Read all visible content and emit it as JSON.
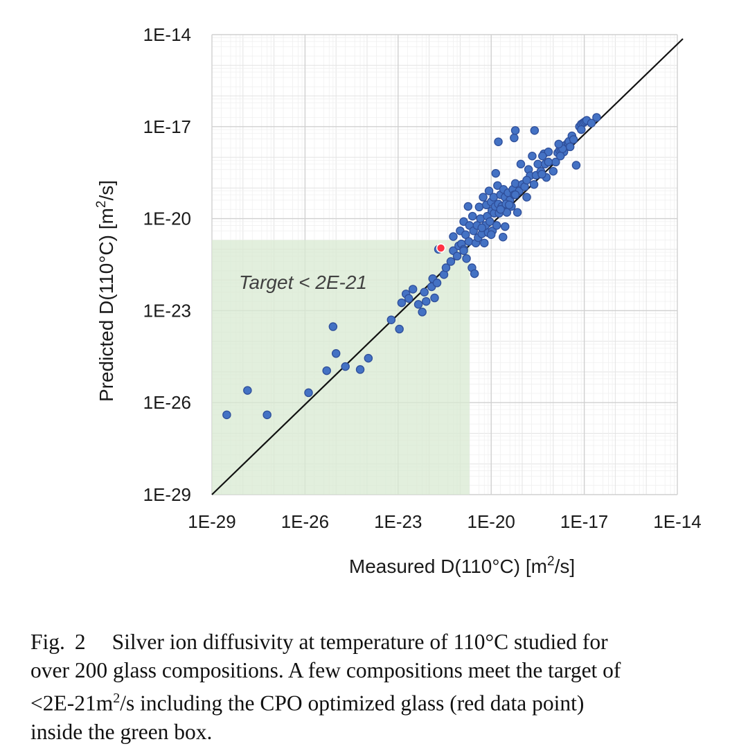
{
  "chart_data": {
    "type": "scatter",
    "x_scale": "log",
    "y_scale": "log",
    "x_tick_labels": [
      "1E-29",
      "1E-26",
      "1E-23",
      "1E-20",
      "1E-17",
      "1E-14"
    ],
    "y_tick_labels": [
      "1E-29",
      "1E-26",
      "1E-23",
      "1E-20",
      "1E-17",
      "1E-14"
    ],
    "xlim": [
      "1E-29",
      "1E-14"
    ],
    "ylim": [
      "1E-29",
      "1E-14"
    ],
    "grid": true,
    "xlabel": {
      "main": "Measured D(110°C) [m",
      "sup": "2",
      "tail": "/s]"
    },
    "ylabel": {
      "main": "Predicted D(110°C) [m",
      "sup": "2",
      "tail": "/s]"
    },
    "annotation": "Target < 2E-21",
    "target_region": {
      "x_max": 2e-21,
      "y_max": 2e-21,
      "color": "#d8ead2"
    },
    "identity_line": true,
    "colors": {
      "series": "#4472c4",
      "series_edge": "#2f4f9a",
      "highlight": "#ff3344",
      "grid": "#e3e3e3"
    },
    "highlight_point": [
      2.4e-22,
      1.1e-21
    ],
    "points": [
      [
        3e-29,
        4e-27
      ],
      [
        1.4e-28,
        2.5e-26
      ],
      [
        6e-28,
        4e-27
      ],
      [
        1.3e-26,
        2.1e-26
      ],
      [
        8e-26,
        3e-24
      ],
      [
        5e-26,
        1.1e-25
      ],
      [
        1e-25,
        4e-25
      ],
      [
        2e-25,
        1.5e-25
      ],
      [
        6e-25,
        1.2e-25
      ],
      [
        1.1e-24,
        2.8e-25
      ],
      [
        6e-24,
        5e-24
      ],
      [
        1.1e-23,
        2.5e-24
      ],
      [
        1.3e-23,
        1.8e-23
      ],
      [
        1.8e-23,
        3.5e-23
      ],
      [
        2.2e-23,
        2.5e-23
      ],
      [
        3e-23,
        5e-23
      ],
      [
        4.5e-23,
        1.6e-23
      ],
      [
        6e-23,
        9e-24
      ],
      [
        7e-23,
        4e-23
      ],
      [
        8e-23,
        2e-23
      ],
      [
        1.2e-22,
        6e-23
      ],
      [
        1.3e-22,
        1.1e-22
      ],
      [
        1.5e-22,
        2.6e-23
      ],
      [
        1.8e-22,
        8e-23
      ],
      [
        2e-22,
        1e-21
      ],
      [
        3e-22,
        1.5e-22
      ],
      [
        3.5e-22,
        2.5e-22
      ],
      [
        5e-22,
        4e-22
      ],
      [
        6e-22,
        9e-22
      ],
      [
        6e-22,
        2.6e-21
      ],
      [
        8e-22,
        6e-22
      ],
      [
        9e-22,
        1.3e-21
      ],
      [
        1e-21,
        4e-21
      ],
      [
        1.1e-21,
        1.5e-21
      ],
      [
        1.3e-21,
        1e-21
      ],
      [
        1.3e-21,
        8e-21
      ],
      [
        1.5e-21,
        3e-21
      ],
      [
        1.6e-21,
        5e-22
      ],
      [
        1.8e-21,
        2.5e-20
      ],
      [
        1.9e-21,
        1.8e-21
      ],
      [
        2e-21,
        6e-21
      ],
      [
        2.4e-21,
        2.5e-22
      ],
      [
        2.5e-21,
        1.2e-20
      ],
      [
        2.7e-21,
        4e-21
      ],
      [
        2.9e-21,
        1.6e-22
      ],
      [
        3.2e-21,
        1.6e-21
      ],
      [
        3.5e-21,
        6e-21
      ],
      [
        3.8e-21,
        2.4e-21
      ],
      [
        4.1e-21,
        2.4e-20
      ],
      [
        4.5e-21,
        1e-20
      ],
      [
        5e-21,
        3.2e-21
      ],
      [
        5.5e-21,
        5e-20
      ],
      [
        6e-21,
        1.6e-21
      ],
      [
        6.5e-21,
        6e-21
      ],
      [
        7e-21,
        2.8e-20
      ],
      [
        7.5e-21,
        1.2e-20
      ],
      [
        8e-21,
        3.5e-21
      ],
      [
        8.5e-21,
        8e-20
      ],
      [
        9e-21,
        8e-21
      ],
      [
        1e-20,
        3.5e-20
      ],
      [
        1.05e-20,
        1.8e-20
      ],
      [
        1.1e-20,
        4e-21
      ],
      [
        1.2e-20,
        5e-20
      ],
      [
        1.25e-20,
        1.5e-20
      ],
      [
        1.35e-20,
        2.5e-20
      ],
      [
        1.4e-20,
        3e-19
      ],
      [
        1.5e-20,
        6e-21
      ],
      [
        1.6e-20,
        1.2e-19
      ],
      [
        1.7e-20,
        3e-20
      ],
      [
        1.8e-20,
        1.5e-20
      ],
      [
        2e-20,
        6e-20
      ],
      [
        2.2e-20,
        2.5e-20
      ],
      [
        2.4e-20,
        2.5e-21
      ],
      [
        2.5e-20,
        9e-20
      ],
      [
        2.8e-20,
        5e-20
      ],
      [
        3.2e-20,
        1.6e-20
      ],
      [
        3.5e-20,
        7e-20
      ],
      [
        4e-20,
        4e-20
      ],
      [
        4.5e-20,
        2.5e-20
      ],
      [
        5e-20,
        9e-20
      ],
      [
        5.5e-20,
        6e-20
      ],
      [
        6e-20,
        1.4e-19
      ],
      [
        7e-20,
        1.6e-20
      ],
      [
        8e-20,
        8e-20
      ],
      [
        9e-20,
        6e-19
      ],
      [
        1e-19,
        1.3e-19
      ],
      [
        1.2e-19,
        1.1e-19
      ],
      [
        1.4e-19,
        5e-20
      ],
      [
        1.6e-19,
        4e-19
      ],
      [
        1.8e-19,
        2.5e-19
      ],
      [
        2.1e-19,
        1.1e-18
      ],
      [
        2.4e-19,
        1.3e-19
      ],
      [
        2.8e-19,
        2.6e-19
      ],
      [
        3.2e-19,
        6e-19
      ],
      [
        4e-19,
        3.5e-19
      ],
      [
        5e-19,
        1.3e-18
      ],
      [
        5.5e-19,
        6e-19
      ],
      [
        6e-19,
        2.2e-19
      ],
      [
        7e-19,
        1.5e-18
      ],
      [
        1e-18,
        3.5e-19
      ],
      [
        1.2e-18,
        7e-19
      ],
      [
        1.4e-18,
        1.4e-18
      ],
      [
        1.6e-18,
        1.7e-18
      ],
      [
        1.8e-18,
        1.8e-18
      ],
      [
        2.2e-18,
        1.5e-18
      ],
      [
        2.5e-18,
        2.5e-18
      ],
      [
        3e-18,
        3e-18
      ],
      [
        3.2e-18,
        3.3e-18
      ],
      [
        3.5e-18,
        2.2e-18
      ],
      [
        4e-18,
        5e-18
      ],
      [
        4.5e-18,
        3.8e-18
      ],
      [
        5.5e-18,
        5.5e-19
      ],
      [
        7e-18,
        1e-17
      ],
      [
        8e-18,
        1.2e-17
      ],
      [
        9e-18,
        1.3e-17
      ],
      [
        1e-17,
        1.4e-17
      ],
      [
        1.1e-17,
        1.5e-17
      ],
      [
        1.2e-17,
        1.6e-17
      ],
      [
        2e-18,
        1.9e-18
      ],
      [
        1.5e-18,
        2.7e-18
      ],
      [
        2.5e-19,
        7.5e-18
      ],
      [
        4.5e-19,
        1.1e-18
      ],
      [
        5.5e-20,
        4.3e-18
      ],
      [
        6e-20,
        7.5e-18
      ],
      [
        1.7e-18,
        1.1e-18
      ],
      [
        4.3e-19,
        2.8e-19
      ],
      [
        1.7e-20,
        3.2e-18
      ],
      [
        1.3e-21,
        9e-22
      ],
      [
        1e-20,
        3e-21
      ],
      [
        2e-20,
        2e-20
      ],
      [
        3e-20,
        3e-20
      ],
      [
        5e-21,
        5e-21
      ],
      [
        6e-20,
        6e-20
      ],
      [
        7e-19,
        7e-19
      ],
      [
        8e-18,
        8e-18
      ],
      [
        2.5e-17,
        2e-17
      ],
      [
        1.7e-17,
        1.3e-17
      ],
      [
        3.8e-20,
        2.8e-20
      ],
      [
        2.8e-20,
        5.5e-21
      ],
      [
        1.4e-19,
        1.8e-19
      ]
    ]
  },
  "caption": {
    "fig": "Fig.",
    "number": "2",
    "line1": "Silver ion diffusivity at temperature of 110°C studied for",
    "line2": "over 200 glass compositions. A few compositions meet the target of",
    "line3_pre": "<2E-21m",
    "line3_sup": "2",
    "line3_post": "/s including the CPO optimized glass (red data point)",
    "line4": "inside the green box."
  }
}
